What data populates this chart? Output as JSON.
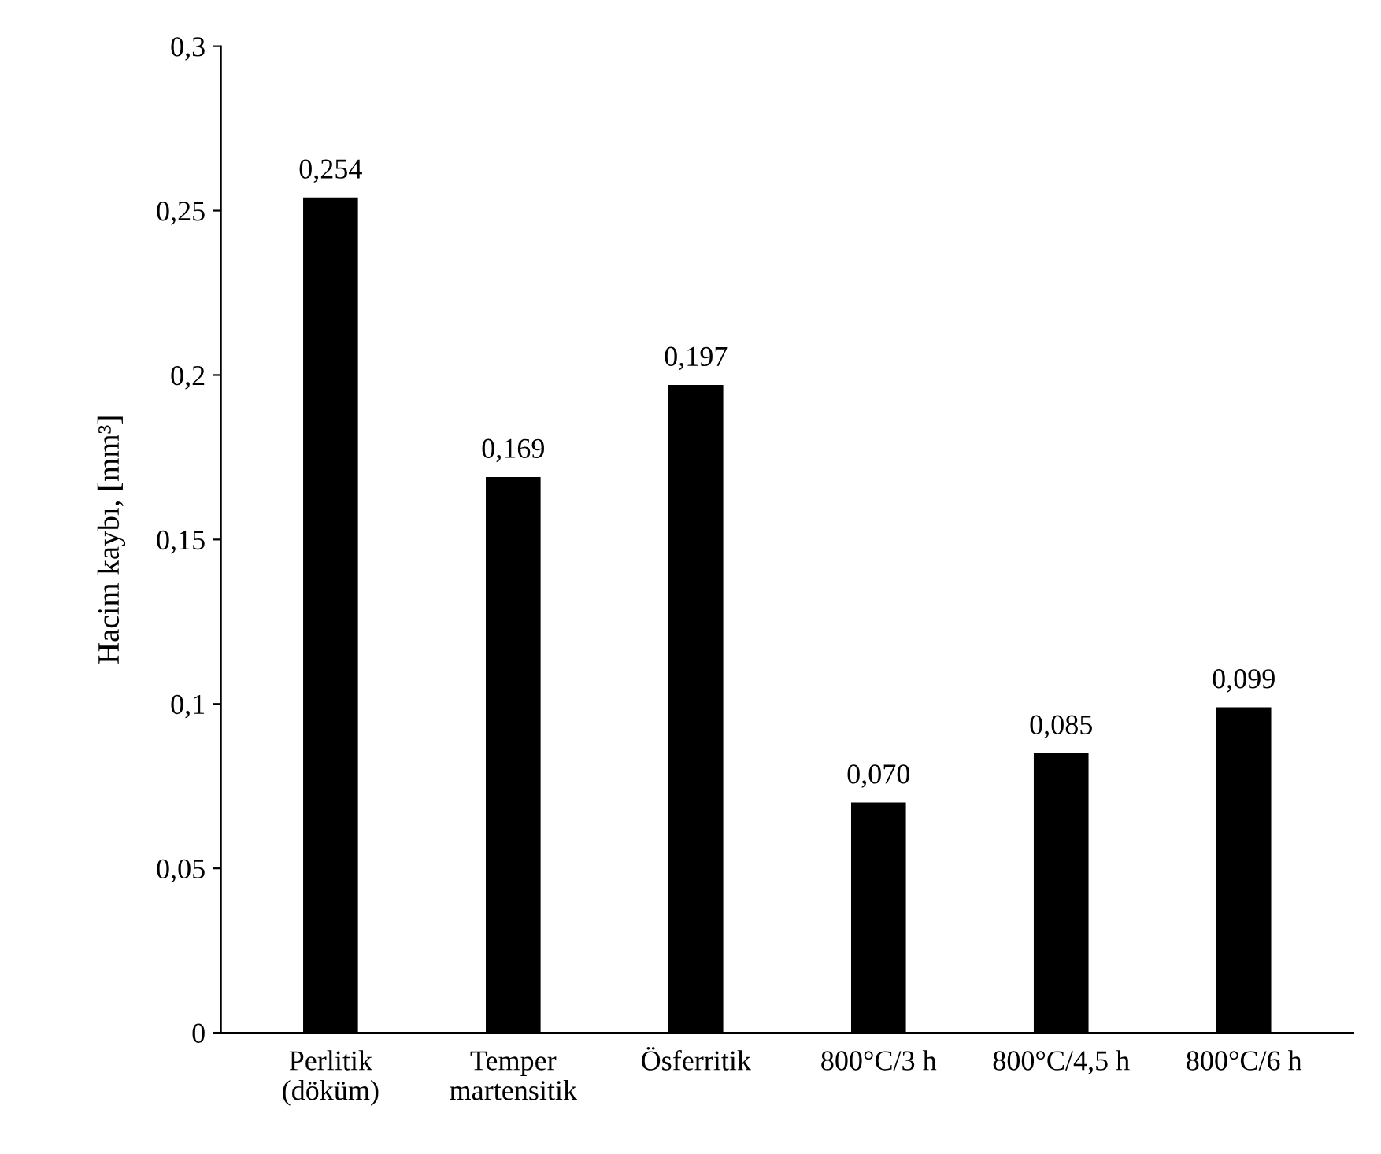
{
  "chart_data": {
    "type": "bar",
    "ylabel": "Hacim kaybı, [mm³]",
    "categories": [
      "Perlitik\n(döküm)",
      "Temper\nmartensitik",
      "Ösferritik",
      "800°C/3 h",
      "800°C/4,5 h",
      "800°C/6 h"
    ],
    "values": [
      0.254,
      0.169,
      0.197,
      0.07,
      0.085,
      0.099
    ],
    "value_labels": [
      "0,254",
      "0,169",
      "0,197",
      "0,070",
      "0,085",
      "0,099"
    ],
    "color": "#000000",
    "ylim": [
      0,
      0.3
    ],
    "yticks": [
      0,
      {
        "value": 0.05,
        "label": "0,05"
      },
      {
        "value": 0.1,
        "label": "0,1"
      },
      {
        "value": 0.15,
        "label": "0,15"
      },
      {
        "value": 0.2,
        "label": "0,2"
      },
      {
        "value": 0.25,
        "label": "0,25"
      },
      {
        "value": 0.3,
        "label": "0,3"
      }
    ],
    "grid": false,
    "legend": false
  }
}
